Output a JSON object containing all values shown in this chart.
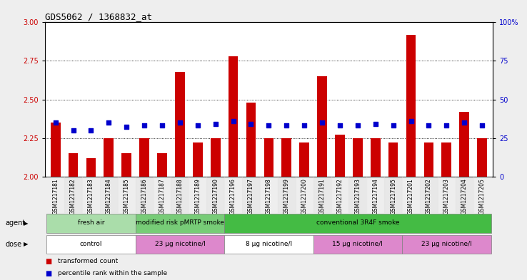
{
  "title": "GDS5062 / 1368832_at",
  "samples": [
    "GSM1217181",
    "GSM1217182",
    "GSM1217183",
    "GSM1217184",
    "GSM1217185",
    "GSM1217186",
    "GSM1217187",
    "GSM1217188",
    "GSM1217189",
    "GSM1217190",
    "GSM1217196",
    "GSM1217197",
    "GSM1217198",
    "GSM1217199",
    "GSM1217200",
    "GSM1217191",
    "GSM1217192",
    "GSM1217193",
    "GSM1217194",
    "GSM1217195",
    "GSM1217201",
    "GSM1217202",
    "GSM1217203",
    "GSM1217204",
    "GSM1217205"
  ],
  "bar_values": [
    2.35,
    2.15,
    2.12,
    2.25,
    2.15,
    2.25,
    2.15,
    2.68,
    2.22,
    2.25,
    2.78,
    2.48,
    2.25,
    2.25,
    2.22,
    2.65,
    2.27,
    2.25,
    2.25,
    2.22,
    2.92,
    2.22,
    2.22,
    2.42,
    2.25
  ],
  "dot_values": [
    35,
    30,
    30,
    35,
    32,
    33,
    33,
    35,
    33,
    34,
    36,
    34,
    33,
    33,
    33,
    35,
    33,
    33,
    34,
    33,
    36,
    33,
    33,
    35,
    33
  ],
  "bar_color": "#CC0000",
  "dot_color": "#0000CC",
  "ylim_left": [
    2.0,
    3.0
  ],
  "ylim_right": [
    0,
    100
  ],
  "yticks_left": [
    2.0,
    2.25,
    2.5,
    2.75,
    3.0
  ],
  "yticks_right": [
    0,
    25,
    50,
    75,
    100
  ],
  "ytick_labels_right": [
    "0",
    "25",
    "50",
    "75",
    "100%"
  ],
  "grid_values": [
    2.25,
    2.5,
    2.75
  ],
  "agent_groups": [
    {
      "label": "fresh air",
      "start": 0,
      "end": 5,
      "color": "#AADDAA"
    },
    {
      "label": "modified risk pMRTP smoke",
      "start": 5,
      "end": 10,
      "color": "#77CC77"
    },
    {
      "label": "conventional 3R4F smoke",
      "start": 10,
      "end": 25,
      "color": "#44BB44"
    }
  ],
  "dose_groups": [
    {
      "label": "control",
      "start": 0,
      "end": 5,
      "color": "#FFFFFF"
    },
    {
      "label": "23 µg nicotine/l",
      "start": 5,
      "end": 10,
      "color": "#DD88CC"
    },
    {
      "label": "8 µg nicotine/l",
      "start": 10,
      "end": 15,
      "color": "#FFFFFF"
    },
    {
      "label": "15 µg nicotine/l",
      "start": 15,
      "end": 20,
      "color": "#DD88CC"
    },
    {
      "label": "23 µg nicotine/l",
      "start": 20,
      "end": 25,
      "color": "#DD88CC"
    }
  ],
  "legend_items": [
    {
      "label": "transformed count",
      "color": "#CC0000"
    },
    {
      "label": "percentile rank within the sample",
      "color": "#0000CC"
    }
  ],
  "bar_color_hex": "#CC0000",
  "dot_color_hex": "#0000CC",
  "bg_color": "#EEEEEE",
  "plot_bg_color": "#FFFFFF",
  "agent_label": "agent",
  "dose_label": "dose",
  "left_axis_color": "#CC0000",
  "right_axis_color": "#0000CC"
}
